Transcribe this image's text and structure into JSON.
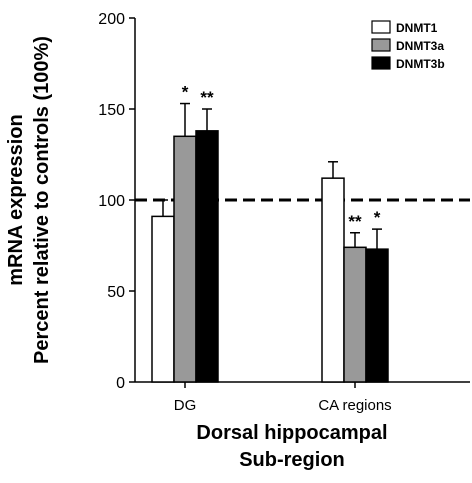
{
  "chart_data": {
    "type": "bar",
    "title": "",
    "xlabel_lines": [
      "Dorsal hippocampal",
      "Sub-region"
    ],
    "ylabel_lines": [
      "mRNA expression",
      "Percent relative to controls (100%)"
    ],
    "ylim": [
      0,
      200
    ],
    "yticks": [
      "0",
      "50",
      "100",
      "150",
      "200"
    ],
    "categories": [
      "DG",
      "CA regions"
    ],
    "reference_line": 100,
    "legend_position": "top-right",
    "series": [
      {
        "name": "DNMT1",
        "color": "#ffffff",
        "values": [
          91,
          112
        ],
        "errors": [
          9,
          9
        ]
      },
      {
        "name": "DNMT3a",
        "color": "#999999",
        "values": [
          135,
          74
        ],
        "errors": [
          18,
          8
        ]
      },
      {
        "name": "DNMT3b",
        "color": "#000000",
        "values": [
          138,
          73
        ],
        "errors": [
          12,
          11
        ]
      }
    ],
    "significance": [
      [
        "",
        "*",
        "**"
      ],
      [
        "",
        "**",
        "*"
      ]
    ]
  }
}
